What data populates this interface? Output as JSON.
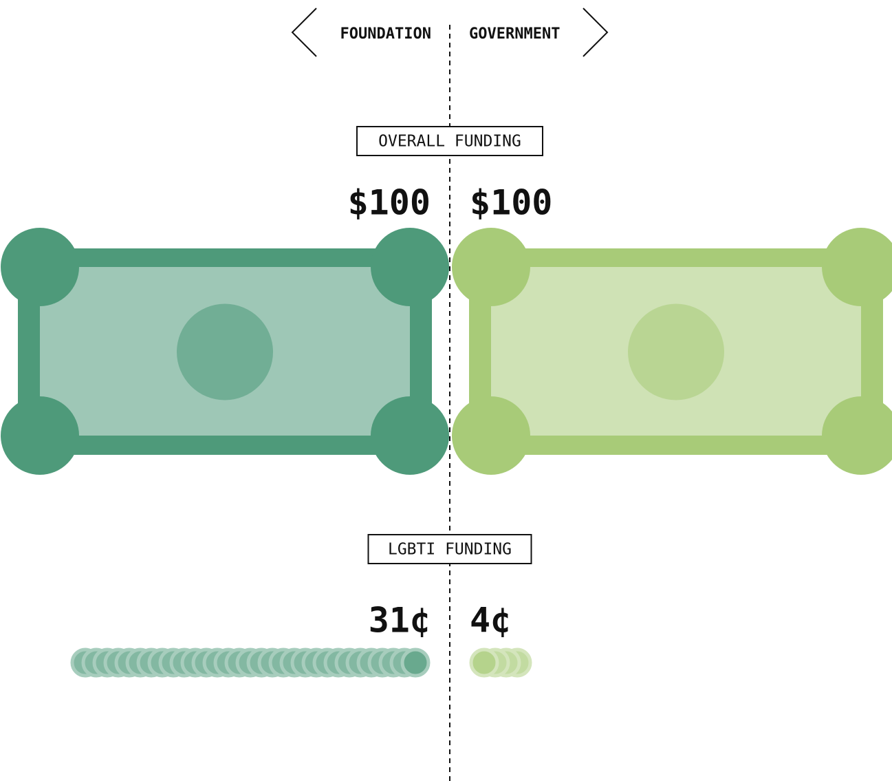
{
  "chart_data": {
    "type": "pictogram",
    "sides": [
      "FOUNDATION",
      "GOVERNMENT"
    ],
    "colors": [
      "#4e9a7a",
      "#a8cb78"
    ],
    "panels": [
      {
        "label": "OVERALL FUNDING",
        "values": [
          100,
          100
        ],
        "value_labels": [
          "$100",
          "$100"
        ]
      },
      {
        "label": "LGBTI FUNDING",
        "values": [
          31,
          4
        ],
        "value_labels": [
          "31¢",
          "4¢"
        ]
      }
    ]
  }
}
